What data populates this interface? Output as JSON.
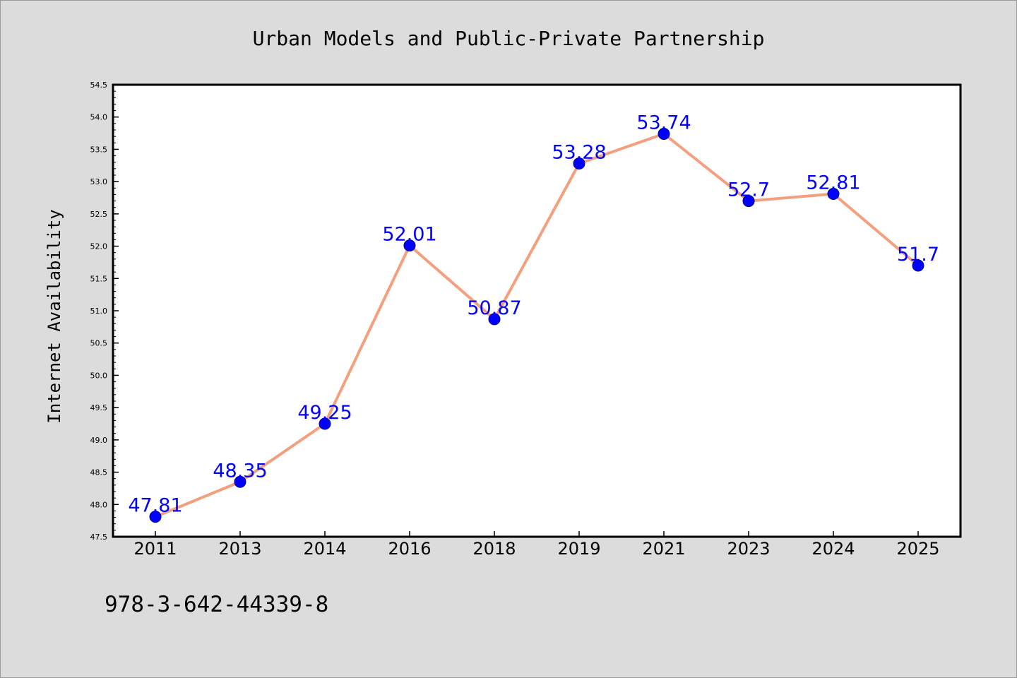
{
  "chart_data": {
    "type": "line",
    "title": "Urban Models and Public-Private Partnership",
    "ylabel": "Internet Availability",
    "xlabel": "",
    "categories": [
      "2011",
      "2013",
      "2014",
      "2016",
      "2018",
      "2019",
      "2021",
      "2023",
      "2024",
      "2025"
    ],
    "values": [
      47.81,
      48.35,
      49.25,
      52.01,
      50.87,
      53.28,
      53.74,
      52.7,
      52.81,
      51.7
    ],
    "data_labels": [
      "47.81",
      "48.35",
      "49.25",
      "52.01",
      "50.87",
      "53.28",
      "53.74",
      "52.7",
      "52.81",
      "51.7"
    ],
    "ylim": [
      47.5,
      54.5
    ],
    "yticks": [
      "47.5",
      "48.0",
      "48.5",
      "49.0",
      "49.5",
      "50.0",
      "50.5",
      "51.0",
      "51.5",
      "52.0",
      "52.5",
      "53.0",
      "53.5",
      "54.0",
      "54.5"
    ],
    "grid": false,
    "legend": "none",
    "colors": {
      "line": "#f4a07e",
      "marker": "#0000ff",
      "data_label": "#0000ff",
      "background": "#dcdcdc",
      "plot_area": "#ffffff"
    }
  },
  "footer": {
    "isbn": "978-3-642-44339-8"
  }
}
